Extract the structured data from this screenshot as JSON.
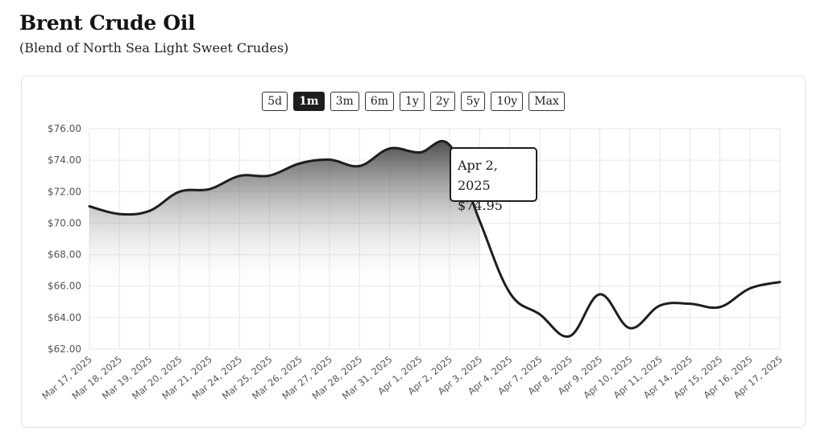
{
  "header": {
    "title": "Brent Crude Oil",
    "subtitle": "(Blend of North Sea Light Sweet Crudes)"
  },
  "range_buttons": [
    {
      "label": "5d",
      "active": false
    },
    {
      "label": "1m",
      "active": true
    },
    {
      "label": "3m",
      "active": false
    },
    {
      "label": "6m",
      "active": false
    },
    {
      "label": "1y",
      "active": false
    },
    {
      "label": "2y",
      "active": false
    },
    {
      "label": "5y",
      "active": false
    },
    {
      "label": "10y",
      "active": false
    },
    {
      "label": "Max",
      "active": false
    }
  ],
  "tooltip": {
    "date": "Apr 2, 2025",
    "value": "$74.95"
  },
  "colors": {
    "line": "#1e1e1e",
    "grid": "#e6e6e6",
    "fill_top": "#3a3a3a",
    "fill_bottom": "#ffffff"
  },
  "chart_data": {
    "type": "area",
    "title": "Brent Crude Oil",
    "subtitle": "(Blend of North Sea Light Sweet Crudes)",
    "xlabel": "",
    "ylabel": "",
    "ylim": [
      62,
      76
    ],
    "yticks": [
      62,
      64,
      66,
      68,
      70,
      72,
      74,
      76
    ],
    "ytick_labels": [
      "$62.00",
      "$64.00",
      "$66.00",
      "$68.00",
      "$70.00",
      "$72.00",
      "$74.00",
      "$76.00"
    ],
    "grid": true,
    "legend": "none",
    "categories": [
      "Mar 17, 2025",
      "Mar 18, 2025",
      "Mar 19, 2025",
      "Mar 20, 2025",
      "Mar 21, 2025",
      "Mar 24, 2025",
      "Mar 25, 2025",
      "Mar 26, 2025",
      "Mar 27, 2025",
      "Mar 28, 2025",
      "Mar 31, 2025",
      "Apr 1, 2025",
      "Apr 2, 2025",
      "Apr 3, 2025",
      "Apr 4, 2025",
      "Apr 7, 2025",
      "Apr 8, 2025",
      "Apr 9, 2025",
      "Apr 10, 2025",
      "Apr 11, 2025",
      "Apr 14, 2025",
      "Apr 15, 2025",
      "Apr 16, 2025",
      "Apr 17, 2025"
    ],
    "values": [
      71.07,
      70.58,
      70.78,
      72.0,
      72.16,
      73.0,
      73.02,
      73.79,
      74.03,
      73.63,
      74.74,
      74.49,
      74.95,
      70.14,
      65.58,
      64.21,
      62.82,
      65.48,
      63.33,
      64.76,
      64.88,
      64.67,
      65.85,
      66.26
    ]
  }
}
